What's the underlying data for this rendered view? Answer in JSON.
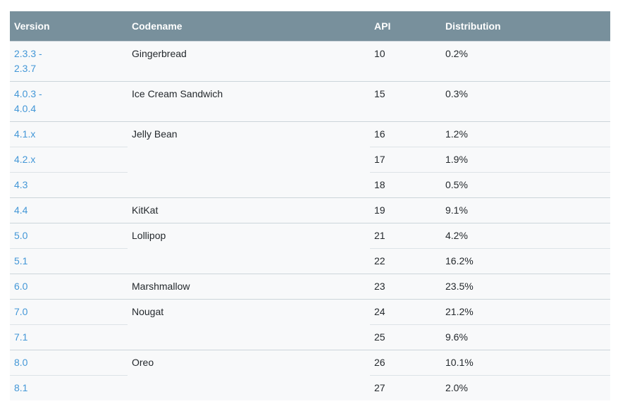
{
  "colors": {
    "header_background": "#78909c",
    "header_text": "#ffffff",
    "row_background": "#f8f9fa",
    "body_text": "#24292d",
    "version_link": "#4397d7",
    "group_divider": "#ccd5da",
    "sub_divider": "#dde3e7",
    "page_background": "#ffffff"
  },
  "table": {
    "columns": [
      "Version",
      "Codename",
      "API",
      "Distribution"
    ],
    "rows": [
      {
        "version": "2.3.3 -\n2.3.7",
        "codename": "Gingerbread",
        "api": "10",
        "distribution": "0.2%"
      },
      {
        "version": "4.0.3 -\n4.0.4",
        "codename": "Ice Cream Sandwich",
        "api": "15",
        "distribution": "0.3%"
      },
      {
        "version": "4.1.x",
        "codename": "Jelly Bean",
        "api": "16",
        "distribution": "1.2%"
      },
      {
        "version": "4.2.x",
        "api": "17",
        "distribution": "1.9%"
      },
      {
        "version": "4.3",
        "api": "18",
        "distribution": "0.5%"
      },
      {
        "version": "4.4",
        "codename": "KitKat",
        "api": "19",
        "distribution": "9.1%"
      },
      {
        "version": "5.0",
        "codename": "Lollipop",
        "api": "21",
        "distribution": "4.2%"
      },
      {
        "version": "5.1",
        "api": "22",
        "distribution": "16.2%"
      },
      {
        "version": "6.0",
        "codename": "Marshmallow",
        "api": "23",
        "distribution": "23.5%"
      },
      {
        "version": "7.0",
        "codename": "Nougat",
        "api": "24",
        "distribution": "21.2%"
      },
      {
        "version": "7.1",
        "api": "25",
        "distribution": "9.6%"
      },
      {
        "version": "8.0",
        "codename": "Oreo",
        "api": "26",
        "distribution": "10.1%"
      },
      {
        "version": "8.1",
        "api": "27",
        "distribution": "2.0%"
      }
    ]
  }
}
